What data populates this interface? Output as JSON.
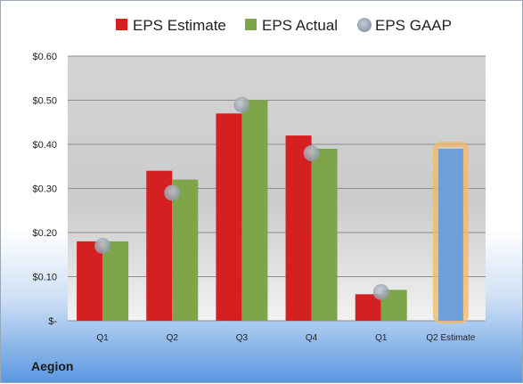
{
  "company": "Aegion",
  "chart_data": {
    "type": "bar",
    "categories": [
      "Q1",
      "Q2",
      "Q3",
      "Q4",
      "Q1",
      "Q2 Estimate"
    ],
    "series": [
      {
        "name": "EPS Estimate",
        "color": "#d42020",
        "values": [
          0.18,
          0.34,
          0.47,
          0.42,
          0.06,
          null
        ]
      },
      {
        "name": "EPS Actual",
        "color": "#7fa54a",
        "values": [
          0.18,
          0.32,
          0.5,
          0.39,
          0.07,
          null
        ]
      },
      {
        "name": "EPS GAAP",
        "color": "#a8b4c4",
        "type": "scatter",
        "values": [
          0.17,
          0.29,
          0.49,
          0.38,
          0.065,
          null
        ]
      }
    ],
    "forecast": {
      "category": "Q2 Estimate",
      "value": 0.39,
      "color": "#6f9fd8",
      "glow": "#f4b866"
    },
    "ylim": [
      0,
      0.6
    ],
    "yticks": [
      0,
      0.1,
      0.2,
      0.3,
      0.4,
      0.5,
      0.6
    ],
    "ytick_labels": [
      "$-",
      "$0.10",
      "$0.20",
      "$0.30",
      "$0.40",
      "$0.50",
      "$0.60"
    ],
    "grid": true,
    "legend": "top"
  }
}
